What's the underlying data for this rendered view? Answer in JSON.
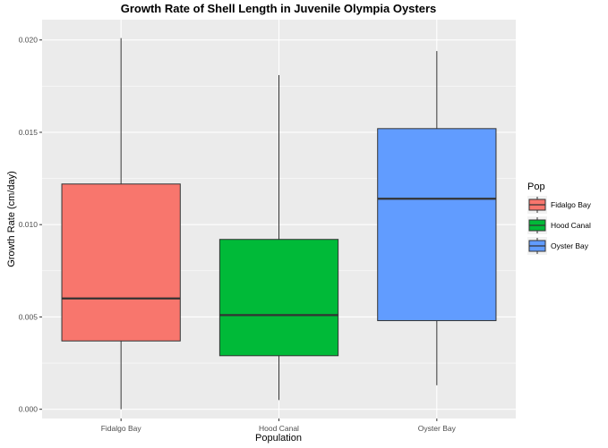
{
  "chart_data": {
    "type": "box",
    "title": "Growth Rate of Shell Length in Juvenile Olympia Oysters",
    "xlabel": "Population",
    "ylabel": "Growth Rate (cm/day)",
    "ylim": [
      -0.0005,
      0.0211
    ],
    "yticks": [
      0.0,
      0.005,
      0.01,
      0.015,
      0.02
    ],
    "ytick_labels": [
      "0.000",
      "0.005",
      "0.010",
      "0.015",
      "0.020"
    ],
    "categories": [
      "Fidalgo Bay",
      "Hood Canal",
      "Oyster Bay"
    ],
    "boxes": [
      {
        "name": "Fidalgo Bay",
        "min": 0.0,
        "q1": 0.0037,
        "median": 0.006,
        "q3": 0.0122,
        "max": 0.0201,
        "color": "#F8766D"
      },
      {
        "name": "Hood Canal",
        "min": 0.0005,
        "q1": 0.0029,
        "median": 0.0051,
        "q3": 0.0092,
        "max": 0.0181,
        "color": "#00BA38"
      },
      {
        "name": "Oyster Bay",
        "min": 0.0013,
        "q1": 0.0048,
        "median": 0.0114,
        "q3": 0.0152,
        "max": 0.0194,
        "color": "#619CFF"
      }
    ],
    "legend": {
      "title": "Pop",
      "position": "right",
      "items": [
        "Fidalgo Bay",
        "Hood Canal",
        "Oyster Bay"
      ]
    },
    "grid": true,
    "panel_background": "#EBEBEB",
    "gridline_color": "#FFFFFF"
  }
}
